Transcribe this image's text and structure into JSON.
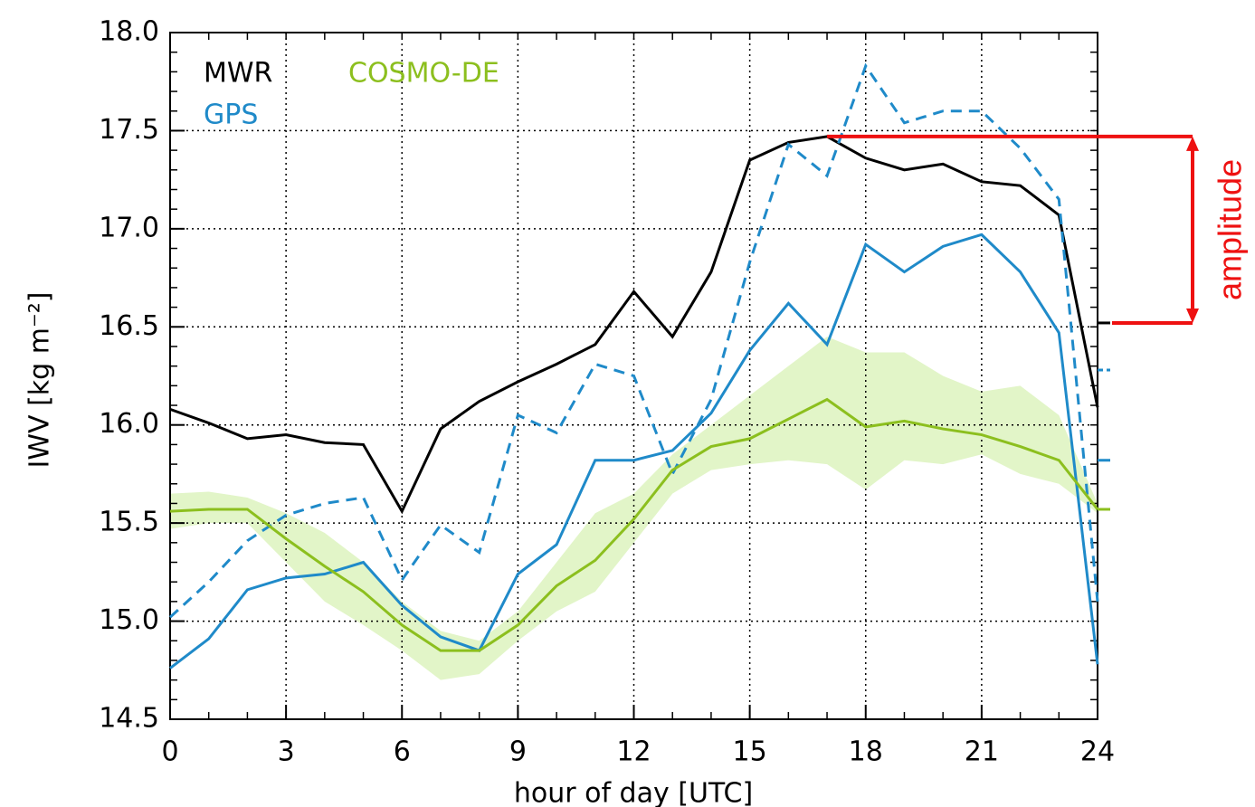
{
  "chart_data": {
    "type": "line",
    "xlabel": "hour of day [UTC]",
    "ylabel": "IWV [kg m⁻²]",
    "x": [
      0,
      1,
      2,
      3,
      4,
      5,
      6,
      7,
      8,
      9,
      10,
      11,
      12,
      13,
      14,
      15,
      16,
      17,
      18,
      19,
      20,
      21,
      22,
      23,
      24
    ],
    "xlim": [
      0,
      24
    ],
    "xticks": [
      0,
      3,
      6,
      9,
      12,
      15,
      18,
      21,
      24
    ],
    "ylim": [
      14.5,
      18
    ],
    "yticks": [
      {
        "value": 14.5,
        "label": "14.5"
      },
      {
        "value": 15,
        "label": "15.0"
      },
      {
        "value": 15.5,
        "label": "15.5"
      },
      {
        "value": 16,
        "label": "16.0"
      },
      {
        "value": 16.5,
        "label": "16.5"
      },
      {
        "value": 17,
        "label": "17.0"
      },
      {
        "value": 17.5,
        "label": "17.5"
      },
      {
        "value": 18,
        "label": "18.0"
      }
    ],
    "grid": true,
    "series": [
      {
        "name": "MWR",
        "color": "#000000",
        "dash": false,
        "mean": 16.52,
        "values": [
          16.08,
          16.01,
          15.93,
          15.95,
          15.91,
          15.9,
          15.56,
          15.98,
          16.12,
          16.22,
          16.31,
          16.41,
          16.68,
          16.45,
          16.78,
          17.35,
          17.44,
          17.47,
          17.36,
          17.3,
          17.33,
          17.24,
          17.22,
          17.07,
          16.09
        ]
      },
      {
        "name": "GPS",
        "color": "#1f8ac9",
        "dash": false,
        "mean": 15.82,
        "values": [
          14.76,
          14.91,
          15.16,
          15.22,
          15.24,
          15.3,
          15.08,
          14.92,
          14.85,
          15.24,
          15.39,
          15.82,
          15.82,
          15.87,
          16.06,
          16.38,
          16.62,
          16.41,
          16.92,
          16.78,
          16.91,
          16.97,
          16.78,
          16.47,
          14.78
        ]
      },
      {
        "color": "#1f8ac9",
        "dash": true,
        "mean": 16.28,
        "values": [
          15.02,
          15.2,
          15.41,
          15.54,
          15.6,
          15.63,
          15.21,
          15.49,
          15.35,
          16.05,
          15.96,
          16.31,
          16.25,
          15.75,
          16.13,
          16.83,
          17.43,
          17.27,
          17.83,
          17.54,
          17.6,
          17.6,
          17.41,
          17.15,
          15.1
        ]
      },
      {
        "name": "COSMO-DE",
        "color": "#8cbf1e",
        "band_color": "#e2f5c8",
        "dash": false,
        "mean": 15.57,
        "values": [
          15.56,
          15.57,
          15.57,
          15.42,
          15.28,
          15.15,
          14.98,
          14.85,
          14.85,
          14.98,
          15.18,
          15.31,
          15.52,
          15.77,
          15.89,
          15.93,
          16.03,
          16.13,
          15.99,
          16.02,
          15.98,
          15.95,
          15.89,
          15.82,
          15.57
        ],
        "upper": [
          15.65,
          15.66,
          15.63,
          15.55,
          15.45,
          15.3,
          15.1,
          14.95,
          14.9,
          15.05,
          15.3,
          15.55,
          15.65,
          15.85,
          16.0,
          16.15,
          16.3,
          16.45,
          16.37,
          16.37,
          16.25,
          16.17,
          16.2,
          16.05,
          15.6
        ],
        "lower": [
          15.47,
          15.5,
          15.5,
          15.3,
          15.1,
          14.98,
          14.85,
          14.7,
          14.73,
          14.9,
          15.05,
          15.15,
          15.4,
          15.65,
          15.77,
          15.8,
          15.82,
          15.8,
          15.67,
          15.82,
          15.8,
          15.85,
          15.75,
          15.7,
          15.55
        ]
      }
    ],
    "annotation": "amplitude",
    "annotation_color": "#ee1111"
  }
}
